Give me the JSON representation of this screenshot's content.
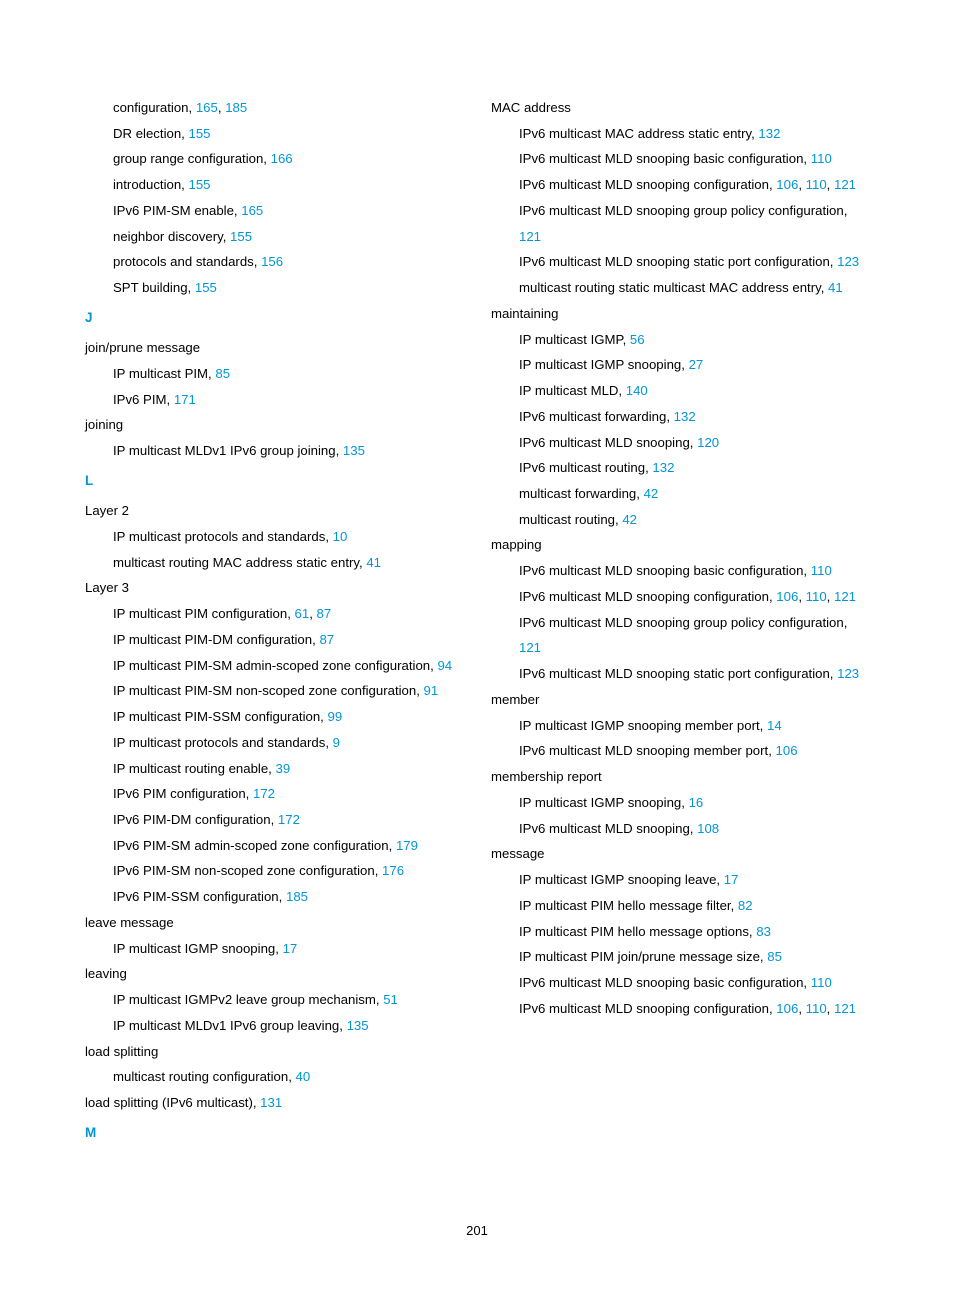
{
  "page_number": "201",
  "colors": {
    "link": "#0096d6",
    "text": "#000000",
    "background": "#ffffff"
  },
  "left": [
    {
      "cls": "sub",
      "text": "configuration, ",
      "refs": [
        "165",
        ", ",
        "185"
      ]
    },
    {
      "cls": "sub",
      "text": "DR election, ",
      "refs": [
        "155"
      ]
    },
    {
      "cls": "sub",
      "text": "group range configuration, ",
      "refs": [
        "166"
      ]
    },
    {
      "cls": "sub",
      "text": "introduction, ",
      "refs": [
        "155"
      ]
    },
    {
      "cls": "sub",
      "text": "IPv6 PIM-SM enable, ",
      "refs": [
        "165"
      ]
    },
    {
      "cls": "sub",
      "text": "neighbor discovery, ",
      "refs": [
        "155"
      ]
    },
    {
      "cls": "sub",
      "text": "protocols and standards, ",
      "refs": [
        "156"
      ]
    },
    {
      "cls": "sub",
      "text": "SPT building, ",
      "refs": [
        "155"
      ]
    },
    {
      "cls": "letter-head",
      "text": "J"
    },
    {
      "cls": "term",
      "text": "join/prune message"
    },
    {
      "cls": "sub",
      "text": "IP multicast PIM, ",
      "refs": [
        "85"
      ]
    },
    {
      "cls": "sub",
      "text": "IPv6 PIM, ",
      "refs": [
        "171"
      ]
    },
    {
      "cls": "term",
      "text": "joining"
    },
    {
      "cls": "sub",
      "text": "IP multicast MLDv1 IPv6 group joining, ",
      "refs": [
        "135"
      ]
    },
    {
      "cls": "letter-head",
      "text": "L"
    },
    {
      "cls": "term",
      "text": "Layer 2"
    },
    {
      "cls": "sub",
      "text": "IP multicast protocols and standards, ",
      "refs": [
        "10"
      ]
    },
    {
      "cls": "sub",
      "text": "multicast routing MAC address static entry, ",
      "refs": [
        "41"
      ]
    },
    {
      "cls": "term",
      "text": "Layer 3"
    },
    {
      "cls": "sub",
      "text": "IP multicast PIM configuration, ",
      "refs": [
        "61",
        ", ",
        "87"
      ]
    },
    {
      "cls": "sub",
      "text": "IP multicast PIM-DM configuration, ",
      "refs": [
        "87"
      ]
    },
    {
      "cls": "sub",
      "text": "IP multicast PIM-SM admin-scoped zone configuration, ",
      "refs": [
        "94"
      ]
    },
    {
      "cls": "sub",
      "text": "IP multicast PIM-SM non-scoped zone configuration, ",
      "refs": [
        "91"
      ]
    },
    {
      "cls": "sub",
      "text": "IP multicast PIM-SSM configuration, ",
      "refs": [
        "99"
      ]
    },
    {
      "cls": "sub",
      "text": "IP multicast protocols and standards, ",
      "refs": [
        "9"
      ]
    },
    {
      "cls": "sub",
      "text": "IP multicast routing enable, ",
      "refs": [
        "39"
      ]
    },
    {
      "cls": "sub",
      "text": "IPv6 PIM configuration, ",
      "refs": [
        "172"
      ]
    },
    {
      "cls": "sub",
      "text": "IPv6 PIM-DM configuration, ",
      "refs": [
        "172"
      ]
    },
    {
      "cls": "sub",
      "text": "IPv6 PIM-SM admin-scoped zone configuration, ",
      "refs": [
        "179"
      ]
    },
    {
      "cls": "sub",
      "text": "IPv6 PIM-SM non-scoped zone configuration, ",
      "refs": [
        "176"
      ]
    },
    {
      "cls": "sub",
      "text": "IPv6 PIM-SSM configuration, ",
      "refs": [
        "185"
      ]
    },
    {
      "cls": "term",
      "text": "leave message"
    },
    {
      "cls": "sub",
      "text": "IP multicast IGMP snooping, ",
      "refs": [
        "17"
      ]
    },
    {
      "cls": "term",
      "text": "leaving"
    },
    {
      "cls": "sub",
      "text": "IP multicast IGMPv2 leave group mechanism, ",
      "refs": [
        "51"
      ]
    },
    {
      "cls": "sub",
      "text": "IP multicast MLDv1 IPv6 group leaving, ",
      "refs": [
        "135"
      ]
    },
    {
      "cls": "term",
      "text": "load splitting"
    },
    {
      "cls": "sub",
      "text": "multicast routing configuration, ",
      "refs": [
        "40"
      ]
    },
    {
      "cls": "term",
      "text": "load splitting (IPv6 multicast), ",
      "refs": [
        "131"
      ]
    },
    {
      "cls": "letter-head",
      "text": "M"
    }
  ],
  "right": [
    {
      "cls": "term",
      "text": "MAC address"
    },
    {
      "cls": "sub",
      "text": "IPv6 multicast MAC address static entry, ",
      "refs": [
        "132"
      ]
    },
    {
      "cls": "sub",
      "text": "IPv6 multicast MLD snooping basic configuration, ",
      "refs": [
        "110"
      ]
    },
    {
      "cls": "sub",
      "text": "IPv6 multicast MLD snooping configuration, ",
      "refs": [
        "106",
        ", ",
        "110",
        ", ",
        "121"
      ]
    },
    {
      "cls": "sub",
      "text": "IPv6 multicast MLD snooping group policy configuration, ",
      "refs": [
        "121"
      ]
    },
    {
      "cls": "sub",
      "text": "IPv6 multicast MLD snooping static port configuration, ",
      "refs": [
        "123"
      ]
    },
    {
      "cls": "sub",
      "text": "multicast routing static multicast MAC address entry, ",
      "refs": [
        "41"
      ]
    },
    {
      "cls": "term",
      "text": "maintaining"
    },
    {
      "cls": "sub",
      "text": "IP multicast IGMP, ",
      "refs": [
        "56"
      ]
    },
    {
      "cls": "sub",
      "text": "IP multicast IGMP snooping, ",
      "refs": [
        "27"
      ]
    },
    {
      "cls": "sub",
      "text": "IP multicast MLD, ",
      "refs": [
        "140"
      ]
    },
    {
      "cls": "sub",
      "text": "IPv6 multicast forwarding, ",
      "refs": [
        "132"
      ]
    },
    {
      "cls": "sub",
      "text": "IPv6 multicast MLD snooping, ",
      "refs": [
        "120"
      ]
    },
    {
      "cls": "sub",
      "text": "IPv6 multicast routing, ",
      "refs": [
        "132"
      ]
    },
    {
      "cls": "sub",
      "text": "multicast forwarding, ",
      "refs": [
        "42"
      ]
    },
    {
      "cls": "sub",
      "text": "multicast routing, ",
      "refs": [
        "42"
      ]
    },
    {
      "cls": "term",
      "text": "mapping"
    },
    {
      "cls": "sub",
      "text": "IPv6 multicast MLD snooping basic configuration, ",
      "refs": [
        "110"
      ]
    },
    {
      "cls": "sub",
      "text": "IPv6 multicast MLD snooping configuration, ",
      "refs": [
        "106",
        ", ",
        "110",
        ", ",
        "121"
      ]
    },
    {
      "cls": "sub",
      "text": "IPv6 multicast MLD snooping group policy configuration, ",
      "refs": [
        "121"
      ]
    },
    {
      "cls": "sub",
      "text": "IPv6 multicast MLD snooping static port configuration, ",
      "refs": [
        "123"
      ]
    },
    {
      "cls": "term",
      "text": "member"
    },
    {
      "cls": "sub",
      "text": "IP multicast IGMP snooping member port, ",
      "refs": [
        "14"
      ]
    },
    {
      "cls": "sub",
      "text": "IPv6 multicast MLD snooping member port, ",
      "refs": [
        "106"
      ]
    },
    {
      "cls": "term",
      "text": "membership report"
    },
    {
      "cls": "sub",
      "text": "IP multicast IGMP snooping, ",
      "refs": [
        "16"
      ]
    },
    {
      "cls": "sub",
      "text": "IPv6 multicast MLD snooping, ",
      "refs": [
        "108"
      ]
    },
    {
      "cls": "term",
      "text": "message"
    },
    {
      "cls": "sub",
      "text": "IP multicast IGMP snooping leave, ",
      "refs": [
        "17"
      ]
    },
    {
      "cls": "sub",
      "text": "IP multicast PIM hello message filter, ",
      "refs": [
        "82"
      ]
    },
    {
      "cls": "sub",
      "text": "IP multicast PIM hello message options, ",
      "refs": [
        "83"
      ]
    },
    {
      "cls": "sub",
      "text": "IP multicast PIM join/prune message size, ",
      "refs": [
        "85"
      ]
    },
    {
      "cls": "sub",
      "text": "IPv6 multicast MLD snooping basic configuration, ",
      "refs": [
        "110"
      ]
    },
    {
      "cls": "sub",
      "text": "IPv6 multicast MLD snooping configuration, ",
      "refs": [
        "106",
        ", ",
        "110",
        ", ",
        "121"
      ]
    }
  ]
}
